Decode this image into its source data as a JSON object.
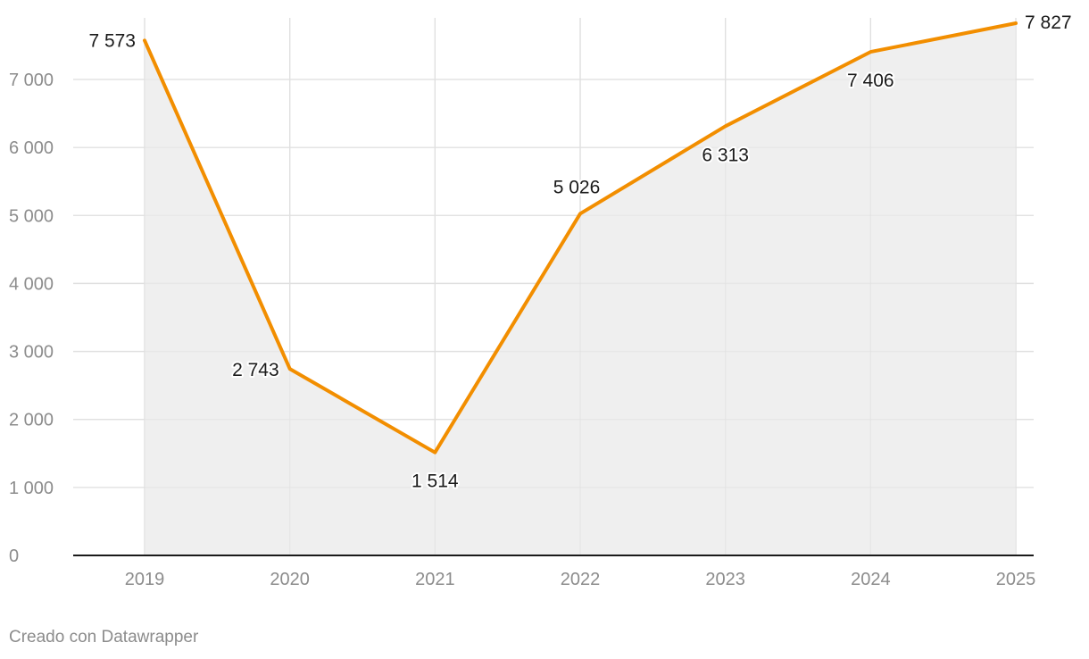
{
  "chart_data": {
    "type": "area",
    "x": [
      "2019",
      "2020",
      "2021",
      "2022",
      "2023",
      "2024",
      "2025"
    ],
    "series": [
      {
        "values": [
          7573,
          2743,
          1514,
          5026,
          6313,
          7406,
          7827
        ],
        "value_labels": [
          "7 573",
          "2 743",
          "1 514",
          "5 026",
          "6 313",
          "7 406",
          "7 827"
        ]
      }
    ],
    "ylim": [
      0,
      7827
    ],
    "yticks": [
      0,
      1000,
      2000,
      3000,
      4000,
      5000,
      6000,
      7000
    ],
    "ytick_labels": [
      "0",
      "1 000",
      "2 000",
      "3 000",
      "4 000",
      "5 000",
      "6 000",
      "7 000"
    ],
    "grid": true,
    "colors": {
      "line": "#f28e00",
      "area": "#efefef",
      "grid": "#e0e0e0",
      "axis": "#1a1a1a",
      "tick_text": "#8c8c8c"
    }
  },
  "footer": {
    "credit": "Creado con Datawrapper"
  }
}
